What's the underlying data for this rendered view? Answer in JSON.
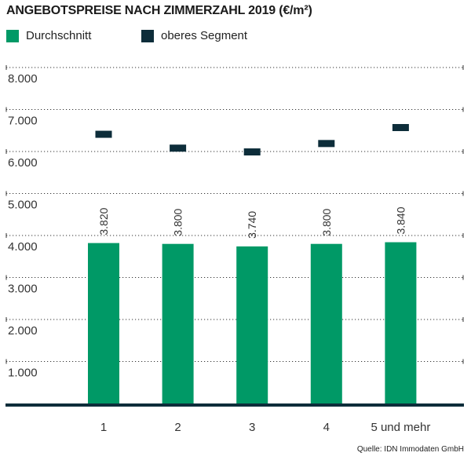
{
  "chart_data": {
    "type": "bar",
    "title": "ANGEBOTSPREISE NACH ZIMMERZAHL 2019 (€/m²)",
    "categories": [
      "1",
      "2",
      "3",
      "4",
      "5 und mehr"
    ],
    "series": [
      {
        "name": "Durchschnitt",
        "values": [
          3820,
          3800,
          3740,
          3800,
          3840
        ],
        "color": "#009966",
        "data_labels": [
          "3.820",
          "3.800",
          "3.740",
          "3.800",
          "3.840"
        ]
      },
      {
        "name": "oberes Segment",
        "values": [
          6410,
          6080,
          5990,
          6190,
          6570
        ],
        "color": "#0d2d3a",
        "mark": "marker"
      }
    ],
    "ylim": [
      0,
      8000
    ],
    "yticks": [
      1000,
      2000,
      3000,
      4000,
      5000,
      6000,
      7000,
      8000
    ],
    "ytick_labels": [
      "1.000",
      "2.000",
      "3.000",
      "4.000",
      "5.000",
      "6.000",
      "7.000",
      "8.000"
    ],
    "grid": true,
    "legend": "top-left",
    "source": "Quelle: IDN Immodaten GmbH"
  }
}
